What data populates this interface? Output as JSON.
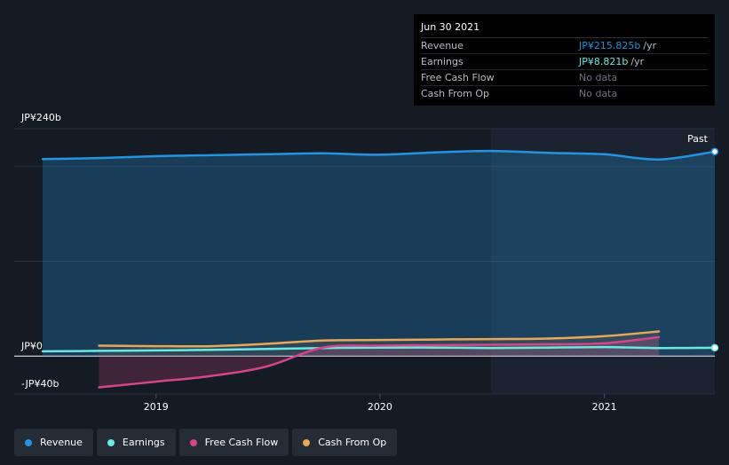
{
  "tooltip": {
    "date": "Jun 30 2021",
    "rows": [
      {
        "label": "Revenue",
        "value": "JP¥215.825b",
        "unit": "/yr",
        "color": "#2394df"
      },
      {
        "label": "Earnings",
        "value": "JP¥8.821b",
        "unit": "/yr",
        "color": "#6ce8e0"
      },
      {
        "label": "Free Cash Flow",
        "value": "No data",
        "unit": "",
        "color": "#6e7480"
      },
      {
        "label": "Cash From Op",
        "value": "No data",
        "unit": "",
        "color": "#6e7480"
      }
    ]
  },
  "past_label": "Past",
  "legend": [
    {
      "label": "Revenue",
      "color": "#2394df"
    },
    {
      "label": "Earnings",
      "color": "#6ce8e0"
    },
    {
      "label": "Free Cash Flow",
      "color": "#d4458a"
    },
    {
      "label": "Cash From Op",
      "color": "#e8a85a"
    }
  ],
  "chart_data": {
    "type": "line",
    "y_unit": "JP¥ billions",
    "ylim": [
      -40,
      240
    ],
    "y_tick_labels": [
      {
        "value": 240,
        "label": "JP¥240b"
      },
      {
        "value": 0,
        "label": "JP¥0"
      },
      {
        "value": -40,
        "label": "-JP¥40b"
      }
    ],
    "xlim": [
      "2018-06-30",
      "2021-06-30"
    ],
    "x_tick_labels": [
      {
        "value": "2019-01-01",
        "label": "2019"
      },
      {
        "value": "2020-01-01",
        "label": "2020"
      },
      {
        "value": "2021-01-01",
        "label": "2021"
      }
    ],
    "highlight_start": "2020-06-30",
    "series": [
      {
        "name": "Revenue",
        "color": "#2394df",
        "area": true,
        "points": [
          [
            "2018-06-30",
            208
          ],
          [
            "2018-09-30",
            209
          ],
          [
            "2018-12-31",
            211
          ],
          [
            "2019-03-31",
            212
          ],
          [
            "2019-06-30",
            213
          ],
          [
            "2019-09-30",
            214
          ],
          [
            "2019-12-31",
            212.5
          ],
          [
            "2020-03-31",
            215
          ],
          [
            "2020-06-30",
            216.5
          ],
          [
            "2020-09-30",
            214.5
          ],
          [
            "2020-12-31",
            213
          ],
          [
            "2021-03-31",
            207.5
          ],
          [
            "2021-06-30",
            215.825
          ]
        ]
      },
      {
        "name": "Earnings",
        "color": "#6ce8e0",
        "area": false,
        "points": [
          [
            "2018-06-30",
            5
          ],
          [
            "2018-09-30",
            5.5
          ],
          [
            "2018-12-31",
            6
          ],
          [
            "2019-03-31",
            6.5
          ],
          [
            "2019-06-30",
            7.5
          ],
          [
            "2019-09-30",
            8.5
          ],
          [
            "2019-12-31",
            9
          ],
          [
            "2020-03-31",
            9
          ],
          [
            "2020-06-30",
            8.5
          ],
          [
            "2020-09-30",
            9
          ],
          [
            "2020-12-31",
            9.5
          ],
          [
            "2021-03-31",
            8.5
          ],
          [
            "2021-06-30",
            8.821
          ]
        ]
      },
      {
        "name": "Free Cash Flow",
        "color": "#d4458a",
        "area": true,
        "points": [
          [
            "2018-09-30",
            -33
          ],
          [
            "2018-12-31",
            -27
          ],
          [
            "2019-03-31",
            -21
          ],
          [
            "2019-06-30",
            -11
          ],
          [
            "2019-09-30",
            9
          ],
          [
            "2019-12-31",
            11
          ],
          [
            "2020-03-31",
            11.5
          ],
          [
            "2020-06-30",
            12
          ],
          [
            "2020-09-30",
            12.5
          ],
          [
            "2020-12-31",
            13.5
          ],
          [
            "2021-03-31",
            20
          ]
        ]
      },
      {
        "name": "Cash From Op",
        "color": "#e8a85a",
        "area": true,
        "points": [
          [
            "2018-09-30",
            11
          ],
          [
            "2018-12-31",
            10.5
          ],
          [
            "2019-03-31",
            10.5
          ],
          [
            "2019-06-30",
            13
          ],
          [
            "2019-09-30",
            16.5
          ],
          [
            "2019-12-31",
            17
          ],
          [
            "2020-03-31",
            17.5
          ],
          [
            "2020-06-30",
            18
          ],
          [
            "2020-09-30",
            18.5
          ],
          [
            "2020-12-31",
            21
          ],
          [
            "2021-03-31",
            26
          ]
        ]
      }
    ]
  }
}
